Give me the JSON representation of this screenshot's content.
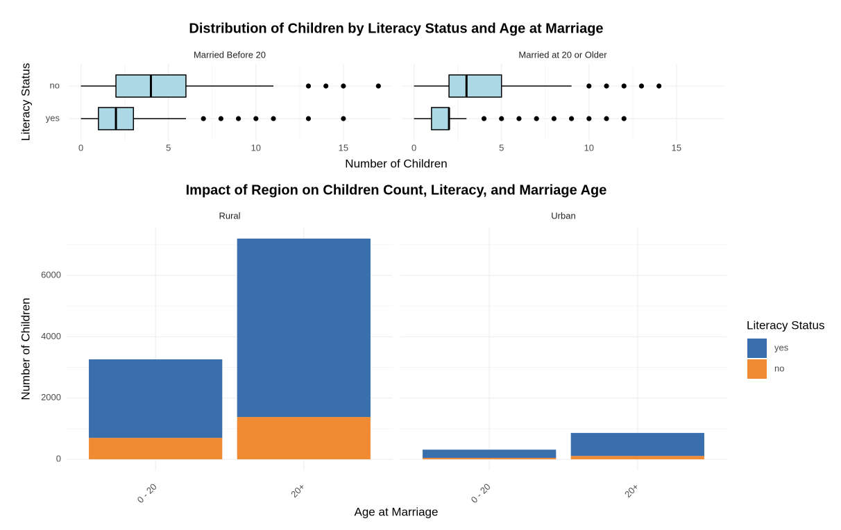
{
  "chart_data": [
    {
      "type": "box",
      "title": "Distribution of Children by Literacy Status and Age at Marriage",
      "x_label": "Number of Children",
      "y_label": "Literacy Status",
      "categories": [
        "no",
        "yes"
      ],
      "xlim": [
        -0.7,
        17.7
      ],
      "xticks": [
        0,
        5,
        10,
        15
      ],
      "grid": true,
      "box_color": "#add8e6",
      "facets": [
        {
          "title": "Married Before 20",
          "boxes": [
            {
              "min": 0,
              "q1": 2,
              "median": 4,
              "q3": 6,
              "max": 11,
              "outliers": [
                13,
                14,
                15,
                17
              ]
            },
            {
              "min": 0,
              "q1": 1,
              "median": 2,
              "q3": 3,
              "max": 6,
              "outliers": [
                7,
                8,
                9,
                10,
                11,
                13,
                15
              ]
            }
          ]
        },
        {
          "title": "Married at 20 or Older",
          "boxes": [
            {
              "min": 0,
              "q1": 2,
              "median": 3,
              "q3": 5,
              "max": 9,
              "outliers": [
                10,
                11,
                12,
                13,
                14
              ]
            },
            {
              "min": 0,
              "q1": 1,
              "median": 2,
              "q3": 2,
              "max": 3,
              "outliers": [
                4,
                5,
                6,
                7,
                8,
                9,
                10,
                11,
                12
              ]
            }
          ]
        }
      ]
    },
    {
      "type": "bar",
      "stacked": true,
      "title": "Impact of Region on Children Count, Literacy, and Marriage Age",
      "x_label": "Age at Marriage",
      "y_label": "Number of Children",
      "categories": [
        "0 - 20",
        "20+"
      ],
      "ylim": [
        -360,
        7560
      ],
      "yticks": [
        0,
        2000,
        4000,
        6000
      ],
      "grid": true,
      "legend_title": "Literacy Status",
      "legend": "right",
      "facets": [
        {
          "title": "Rural",
          "series": [
            {
              "name": "yes",
              "color": "#3a6fad",
              "values": [
                2560,
                5820
              ]
            },
            {
              "name": "no",
              "color": "#f08a33",
              "values": [
                700,
                1380
              ]
            }
          ]
        },
        {
          "title": "Urban",
          "series": [
            {
              "name": "yes",
              "color": "#3a6fad",
              "values": [
                270,
                750
              ]
            },
            {
              "name": "no",
              "color": "#f08a33",
              "values": [
                45,
                110
              ]
            }
          ]
        }
      ]
    }
  ]
}
